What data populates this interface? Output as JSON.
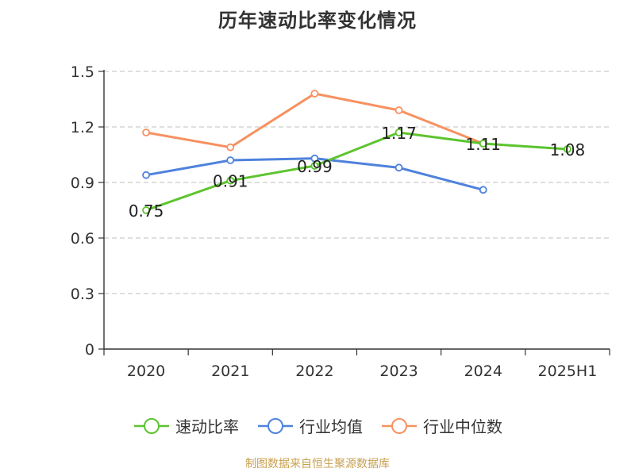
{
  "chart_data": {
    "type": "line",
    "title": "历年速动比率变化情况",
    "categories": [
      "2020",
      "2021",
      "2022",
      "2023",
      "2024",
      "2025H1"
    ],
    "ylim": [
      0,
      1.5
    ],
    "yticks": [
      "0",
      "0.3",
      "0.6",
      "0.9",
      "1.2",
      "1.5"
    ],
    "ytick_values": [
      0,
      0.3,
      0.6,
      0.9,
      1.2,
      1.5
    ],
    "grid": "horizontal dashed",
    "legend_position": "bottom",
    "series": [
      {
        "name": "速动比率",
        "color": "#5cc42e",
        "values": [
          0.75,
          0.91,
          0.99,
          1.17,
          1.11,
          1.08
        ],
        "labels": [
          "0.75",
          "0.91",
          "0.99",
          "1.17",
          "1.11",
          "1.08"
        ]
      },
      {
        "name": "行业均值",
        "color": "#4f82dc",
        "values": [
          0.94,
          1.02,
          1.03,
          0.98,
          0.86,
          null
        ],
        "labels": []
      },
      {
        "name": "行业中位数",
        "color": "#f79160",
        "values": [
          1.17,
          1.09,
          1.38,
          1.29,
          1.11,
          null
        ],
        "labels": []
      }
    ]
  },
  "source": "制图数据来自恒生聚源数据库"
}
